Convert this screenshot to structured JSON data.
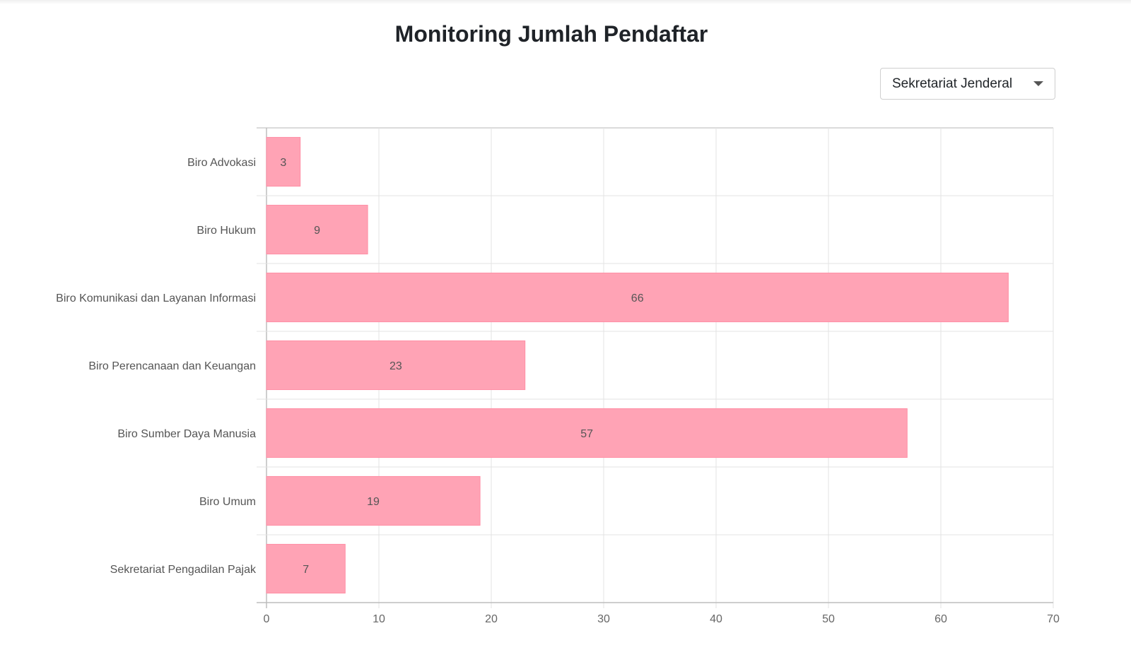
{
  "page": {
    "title": "Monitoring Jumlah Pendaftar"
  },
  "filter": {
    "selected": "Sekretariat Jenderal",
    "icon": "chevron-down-icon"
  },
  "chart_data": {
    "type": "bar",
    "orientation": "horizontal",
    "title": "",
    "xlabel": "",
    "ylabel": "",
    "categories": [
      "Biro Advokasi",
      "Biro Hukum",
      "Biro Komunikasi dan Layanan Informasi",
      "Biro Perencanaan dan Keuangan",
      "Biro Sumber Daya Manusia",
      "Biro Umum",
      "Sekretariat Pengadilan Pajak"
    ],
    "values": [
      3,
      9,
      66,
      23,
      57,
      19,
      7
    ],
    "xlim": [
      0,
      70
    ],
    "xticks": [
      0,
      10,
      20,
      30,
      40,
      50,
      60,
      70
    ],
    "grid": true,
    "legend": "none",
    "colors": {
      "bar": "#ffa3b5",
      "bar_border": "#ff8fa6"
    }
  }
}
